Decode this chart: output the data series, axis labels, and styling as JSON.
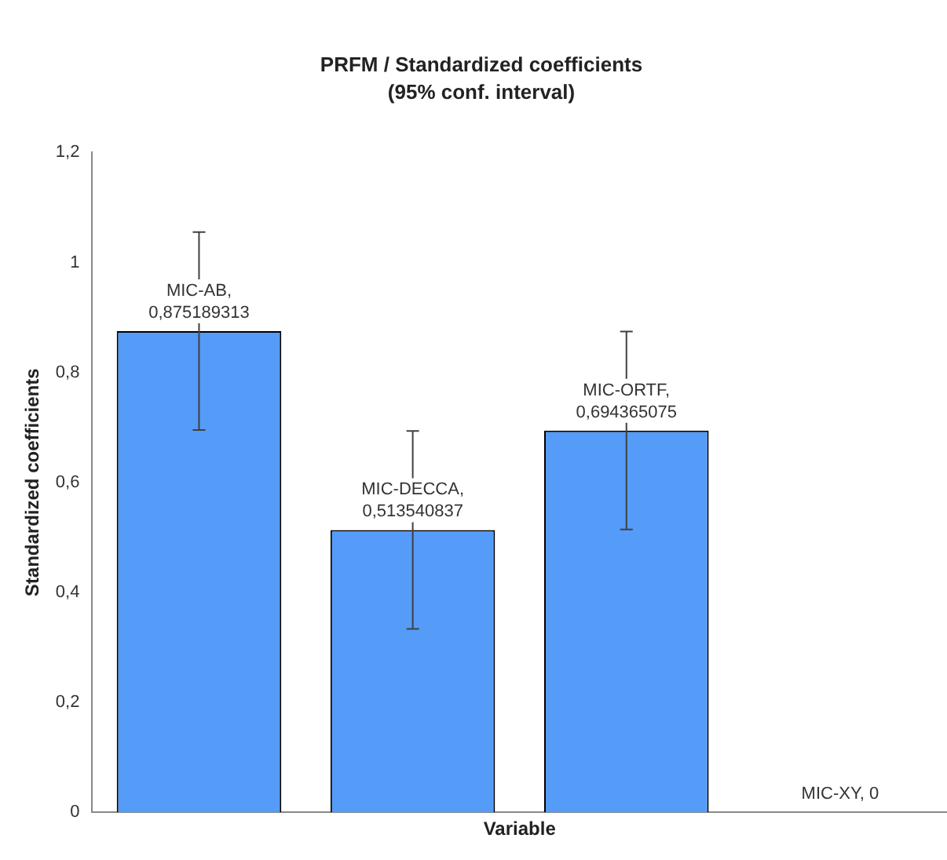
{
  "chart_data": {
    "type": "bar",
    "title": "PRFM / Standardized coefficients",
    "subtitle": "(95% conf. interval)",
    "xlabel": "Variable",
    "ylabel": "Standardized coefficients",
    "categories": [
      null,
      null,
      null,
      null
    ],
    "values": [
      0.875189313,
      0.513540837,
      0.694365075,
      0
    ],
    "errors": [
      0.18,
      0.18,
      0.18,
      null
    ],
    "value_labels": [
      "MIC-AB, 0,875189313",
      "MIC-DECCA, 0,513540837",
      "MIC-ORTF, 0,694365075",
      "MIC-XY, 0"
    ],
    "color": "#559bf8",
    "ylim": [
      0,
      1.2
    ],
    "yticks": [
      0,
      {
        "value": 0.2,
        "label": "0,2"
      },
      {
        "value": 0.4,
        "label": "0,4"
      },
      {
        "value": 0.6,
        "label": "0,6"
      },
      {
        "value": 0.8,
        "label": "0,8"
      },
      1,
      {
        "value": 1.2,
        "label": "1,2"
      }
    ],
    "grid": false,
    "legend": false
  }
}
